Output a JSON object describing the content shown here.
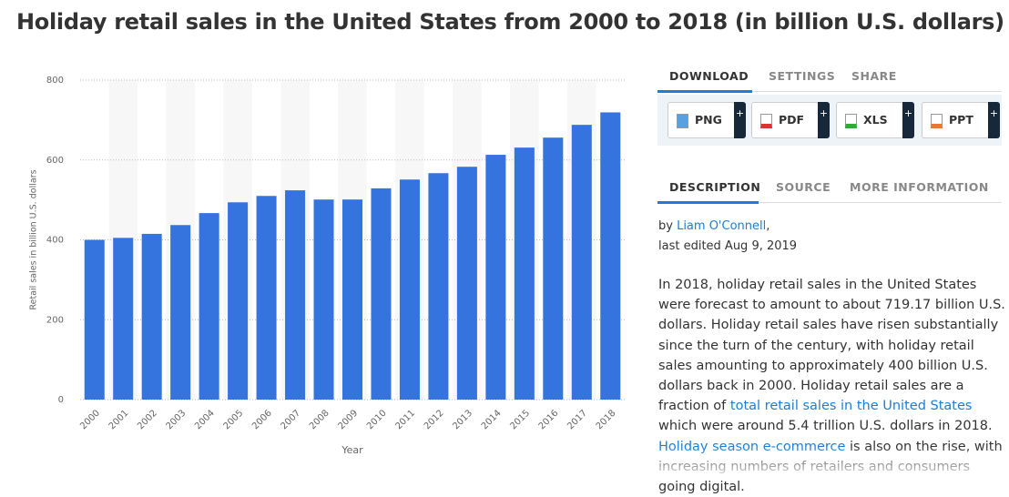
{
  "chart_data": {
    "type": "bar",
    "title": "Holiday retail sales in the United States from 2000 to 2018 (in billion U.S. dollars)",
    "categories": [
      "2000",
      "2001",
      "2002",
      "2003",
      "2004",
      "2005",
      "2006",
      "2007",
      "2008",
      "2009",
      "2010",
      "2011",
      "2012",
      "2013",
      "2014",
      "2015",
      "2016",
      "2017",
      "2018"
    ],
    "values": [
      400,
      405,
      415,
      437,
      467,
      494,
      510,
      524,
      501,
      501,
      529,
      551,
      567,
      583,
      613,
      631,
      656,
      688,
      719.17
    ],
    "color": "#3574de",
    "ylim": [
      0,
      800
    ],
    "yticks": [
      0,
      200,
      400,
      600,
      800
    ],
    "grid": true,
    "y_label": "Retail sales in billion U.S. dollars",
    "x_label": "Year"
  },
  "tabs": [
    "DOWNLOAD",
    "SETTINGS",
    "SHARE"
  ],
  "downloads": [
    "PNG",
    "PDF",
    "XLS",
    "PPT"
  ],
  "plus": "+",
  "info_tabs": [
    "DESCRIPTION",
    "SOURCE",
    "MORE INFORMATION"
  ],
  "byline": [
    "by ",
    "Liam O'Connell",
    ","
  ],
  "edited": "last edited Aug 9, 2019",
  "paragraph": [
    "In 2018, holiday retail sales in the United States were forecast to amount to about 719.17 billion U.S. dollars. Holiday retail sales have risen substantially since the turn of the century, with holiday retail sales amounting to approximately 400 billion U.S. dollars back in 2000. Holiday retail sales are a fraction of ",
    "total retail sales in the United States",
    " which were around 5.4 trillion U.S. dollars in 2018. ",
    "Holiday season e-commerce",
    " is also on the rise, with increasing numbers of retailers and consumers going digital."
  ]
}
